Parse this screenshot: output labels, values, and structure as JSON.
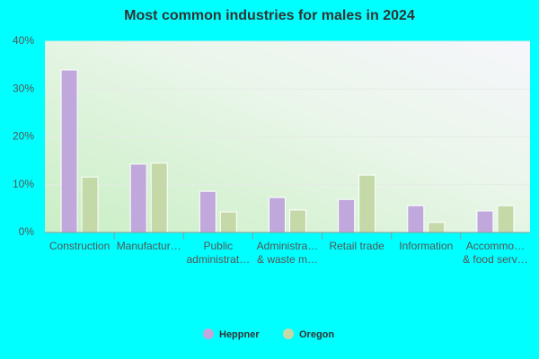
{
  "chart_data": {
    "type": "bar",
    "title": "Most common industries for males in 2024",
    "categories": [
      "Construction",
      "Manufactur…",
      "Public\nadministrat…",
      "Administra…\n& waste m…",
      "Retail trade",
      "Information",
      "Accommo…\n& food serv…"
    ],
    "series": [
      {
        "name": "Heppner",
        "color": "#c0a8dc",
        "values": [
          34.0,
          14.3,
          8.6,
          7.3,
          6.9,
          5.6,
          4.5
        ]
      },
      {
        "name": "Oregon",
        "color": "#c5d9a8",
        "values": [
          11.6,
          14.5,
          4.3,
          4.7,
          12.0,
          2.1,
          5.6
        ]
      }
    ],
    "ylim": [
      0,
      40
    ],
    "yticks": [
      {
        "value": 0,
        "label": "0%"
      },
      {
        "value": 10,
        "label": "10%"
      },
      {
        "value": 20,
        "label": "20%"
      },
      {
        "value": 30,
        "label": "30%"
      },
      {
        "value": 40,
        "label": "40%"
      }
    ],
    "grid": true
  }
}
